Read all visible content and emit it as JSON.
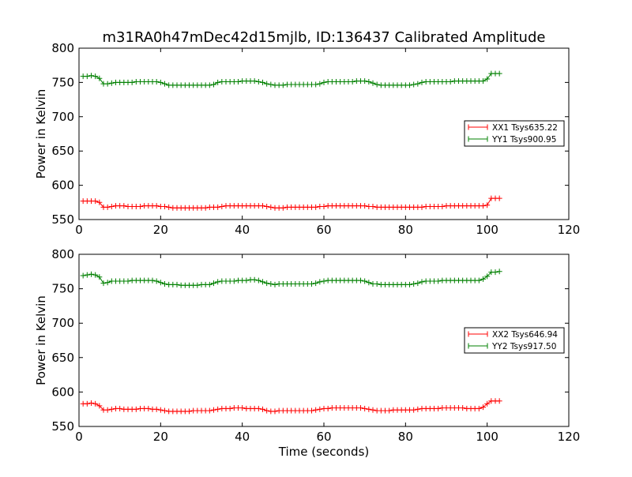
{
  "title": "m31RA0h47mDec42d15mjlb, ID:136437 Calibrated Amplitude",
  "xlabel": "Time (seconds)",
  "colors": {
    "xx": "#ff0000",
    "yy": "#008000",
    "axes": "#000000"
  },
  "chart_data": [
    {
      "type": "line",
      "ylabel": "Power in Kelvin",
      "xlim": [
        0,
        120
      ],
      "ylim": [
        550,
        800
      ],
      "xticks": [
        "0",
        "20",
        "40",
        "60",
        "80",
        "100",
        "120"
      ],
      "yticks": [
        "550",
        "600",
        "650",
        "700",
        "750",
        "800"
      ],
      "grid": false,
      "legend_position": "center-right",
      "x": [
        1,
        2,
        3,
        4,
        5,
        6,
        7,
        8,
        9,
        10,
        11,
        12,
        13,
        14,
        15,
        16,
        17,
        18,
        19,
        20,
        21,
        22,
        23,
        24,
        25,
        26,
        27,
        28,
        29,
        30,
        31,
        32,
        33,
        34,
        35,
        36,
        37,
        38,
        39,
        40,
        41,
        42,
        43,
        44,
        45,
        46,
        47,
        48,
        49,
        50,
        51,
        52,
        53,
        54,
        55,
        56,
        57,
        58,
        59,
        60,
        61,
        62,
        63,
        64,
        65,
        66,
        67,
        68,
        69,
        70,
        71,
        72,
        73,
        74,
        75,
        76,
        77,
        78,
        79,
        80,
        81,
        82,
        83,
        84,
        85,
        86,
        87,
        88,
        89,
        90,
        91,
        92,
        93,
        94,
        95,
        96,
        97,
        98,
        99,
        100,
        101,
        102,
        103
      ],
      "series": [
        {
          "name": "XX1 Tsys635.22",
          "color": "#ff0000",
          "values": [
            577,
            577,
            577,
            577,
            575,
            568,
            568,
            569,
            570,
            570,
            570,
            569,
            569,
            569,
            569,
            570,
            570,
            570,
            570,
            569,
            569,
            568,
            567,
            567,
            567,
            567,
            567,
            567,
            567,
            567,
            567,
            568,
            568,
            568,
            569,
            570,
            570,
            570,
            570,
            570,
            570,
            570,
            570,
            570,
            570,
            569,
            568,
            567,
            567,
            567,
            568,
            568,
            568,
            568,
            568,
            568,
            568,
            568,
            569,
            569,
            570,
            570,
            570,
            570,
            570,
            570,
            570,
            570,
            570,
            570,
            569,
            569,
            568,
            568,
            568,
            568,
            568,
            568,
            568,
            568,
            568,
            568,
            568,
            568,
            569,
            569,
            569,
            569,
            569,
            570,
            570,
            570,
            570,
            570,
            570,
            570,
            570,
            570,
            570,
            571,
            581,
            581,
            581
          ]
        },
        {
          "name": "YY1 Tsys900.95",
          "color": "#008000",
          "values": [
            759,
            759,
            760,
            759,
            756,
            748,
            748,
            749,
            750,
            750,
            750,
            750,
            750,
            751,
            751,
            751,
            751,
            751,
            751,
            750,
            748,
            746,
            746,
            746,
            746,
            746,
            746,
            746,
            746,
            746,
            746,
            746,
            747,
            750,
            751,
            751,
            751,
            751,
            751,
            752,
            752,
            752,
            752,
            751,
            750,
            748,
            747,
            746,
            746,
            746,
            747,
            747,
            747,
            747,
            747,
            747,
            747,
            747,
            748,
            750,
            751,
            751,
            751,
            751,
            751,
            751,
            751,
            752,
            752,
            752,
            751,
            749,
            747,
            746,
            746,
            746,
            746,
            746,
            746,
            746,
            746,
            747,
            748,
            750,
            751,
            751,
            751,
            751,
            751,
            751,
            751,
            752,
            752,
            752,
            752,
            752,
            752,
            752,
            752,
            755,
            763,
            763,
            763
          ]
        }
      ]
    },
    {
      "type": "line",
      "ylabel": "Power in Kelvin",
      "xlim": [
        0,
        120
      ],
      "ylim": [
        550,
        800
      ],
      "xticks": [
        "0",
        "20",
        "40",
        "60",
        "80",
        "100",
        "120"
      ],
      "yticks": [
        "550",
        "600",
        "650",
        "700",
        "750",
        "800"
      ],
      "grid": false,
      "legend_position": "center-right",
      "x": [
        1,
        2,
        3,
        4,
        5,
        6,
        7,
        8,
        9,
        10,
        11,
        12,
        13,
        14,
        15,
        16,
        17,
        18,
        19,
        20,
        21,
        22,
        23,
        24,
        25,
        26,
        27,
        28,
        29,
        30,
        31,
        32,
        33,
        34,
        35,
        36,
        37,
        38,
        39,
        40,
        41,
        42,
        43,
        44,
        45,
        46,
        47,
        48,
        49,
        50,
        51,
        52,
        53,
        54,
        55,
        56,
        57,
        58,
        59,
        60,
        61,
        62,
        63,
        64,
        65,
        66,
        67,
        68,
        69,
        70,
        71,
        72,
        73,
        74,
        75,
        76,
        77,
        78,
        79,
        80,
        81,
        82,
        83,
        84,
        85,
        86,
        87,
        88,
        89,
        90,
        91,
        92,
        93,
        94,
        95,
        96,
        97,
        98,
        99,
        100,
        101,
        102,
        103
      ],
      "series": [
        {
          "name": "XX2 Tsys646.94",
          "color": "#ff0000",
          "values": [
            583,
            583,
            584,
            583,
            580,
            574,
            574,
            575,
            576,
            576,
            575,
            575,
            575,
            575,
            576,
            576,
            576,
            575,
            575,
            574,
            573,
            572,
            572,
            572,
            572,
            572,
            572,
            573,
            573,
            573,
            573,
            573,
            574,
            575,
            576,
            576,
            576,
            577,
            577,
            577,
            576,
            576,
            576,
            576,
            575,
            573,
            572,
            572,
            573,
            573,
            573,
            573,
            573,
            573,
            573,
            573,
            573,
            574,
            575,
            576,
            576,
            577,
            577,
            577,
            577,
            577,
            577,
            577,
            577,
            576,
            575,
            574,
            573,
            573,
            573,
            573,
            574,
            574,
            574,
            574,
            574,
            574,
            575,
            576,
            576,
            576,
            576,
            576,
            577,
            577,
            577,
            577,
            577,
            577,
            576,
            576,
            576,
            576,
            578,
            583,
            587,
            587,
            587
          ]
        },
        {
          "name": "YY2 Tsys917.50",
          "color": "#008000",
          "values": [
            769,
            770,
            771,
            770,
            767,
            758,
            759,
            761,
            761,
            761,
            761,
            761,
            762,
            762,
            762,
            762,
            762,
            762,
            761,
            759,
            757,
            756,
            756,
            756,
            755,
            755,
            755,
            755,
            755,
            756,
            756,
            756,
            758,
            760,
            761,
            761,
            761,
            761,
            762,
            762,
            762,
            763,
            763,
            762,
            760,
            758,
            757,
            756,
            757,
            757,
            757,
            757,
            757,
            757,
            757,
            757,
            757,
            758,
            760,
            761,
            762,
            762,
            762,
            762,
            762,
            762,
            762,
            762,
            762,
            761,
            759,
            757,
            757,
            756,
            756,
            756,
            756,
            756,
            756,
            756,
            756,
            757,
            758,
            760,
            761,
            761,
            761,
            761,
            762,
            762,
            762,
            762,
            762,
            762,
            762,
            762,
            762,
            762,
            764,
            768,
            774,
            774,
            775
          ]
        }
      ]
    }
  ]
}
